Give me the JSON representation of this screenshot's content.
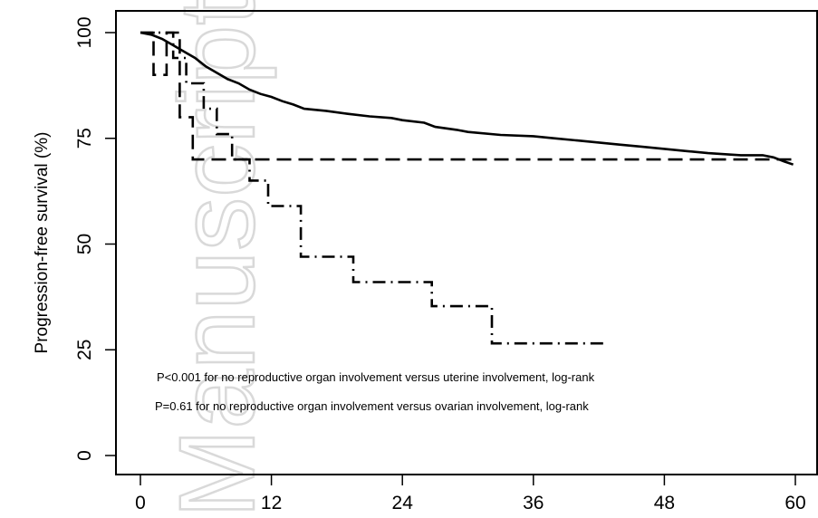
{
  "chart_data": {
    "type": "line",
    "title": "",
    "xlabel": "",
    "ylabel": "Progression-free survival (%)",
    "xlim": [
      0,
      60
    ],
    "ylim": [
      0,
      100
    ],
    "x_ticks": [
      0,
      12,
      24,
      36,
      48,
      60
    ],
    "y_ticks": [
      0,
      25,
      50,
      75,
      100
    ],
    "grid": false,
    "series": [
      {
        "style": "solid",
        "x": [
          0,
          1,
          2,
          3,
          4,
          5,
          6,
          7,
          8,
          9,
          10,
          11,
          12,
          13,
          14,
          15,
          17,
          19,
          21,
          23,
          24,
          26,
          27,
          29,
          30,
          33,
          36,
          38,
          40,
          42,
          44,
          46,
          48,
          50,
          52,
          55,
          57,
          58,
          59,
          59.8
        ],
        "y": [
          100,
          99.5,
          98.5,
          97,
          95.5,
          94,
          92,
          90.5,
          89,
          88,
          86.5,
          85.5,
          84.8,
          83.8,
          83,
          82,
          81.5,
          80.8,
          80.2,
          79.8,
          79.3,
          78.7,
          77.7,
          77,
          76.5,
          75.8,
          75.5,
          75,
          74.5,
          74,
          73.5,
          73,
          72.5,
          72,
          71.5,
          71,
          71,
          70.5,
          69.5,
          68.8
        ]
      },
      {
        "style": "dashed",
        "x": [
          0,
          1.2,
          1.2,
          2.4,
          2.4,
          3.6,
          3.6,
          4.8,
          4.8,
          59.8
        ],
        "y": [
          100,
          100,
          90,
          90,
          100,
          100,
          80,
          80,
          70,
          70
        ]
      },
      {
        "style": "dot-dash",
        "x": [
          0,
          3,
          3,
          4.2,
          4.2,
          5.8,
          5.8,
          7,
          7,
          8.4,
          8.4,
          10,
          10,
          11.7,
          11.7,
          14.7,
          14.7,
          19.5,
          19.5,
          26.7,
          26.7,
          32.2,
          32.2,
          40.2,
          40.2,
          42.6
        ],
        "y": [
          100,
          100,
          94,
          94,
          88,
          88,
          82,
          82,
          76,
          76,
          70,
          70,
          65,
          65,
          59,
          59,
          47,
          47,
          41,
          41,
          35.3,
          35.3,
          26.5,
          26.5,
          26.5,
          26.5
        ]
      }
    ],
    "annotations": [
      "P<0.001 for no reproductive organ involvement versus uterine involvement, log-rank",
      "P=0.61 for no reproductive organ involvement versus ovarian involvement, log-rank"
    ]
  },
  "watermark": "Manuscript"
}
